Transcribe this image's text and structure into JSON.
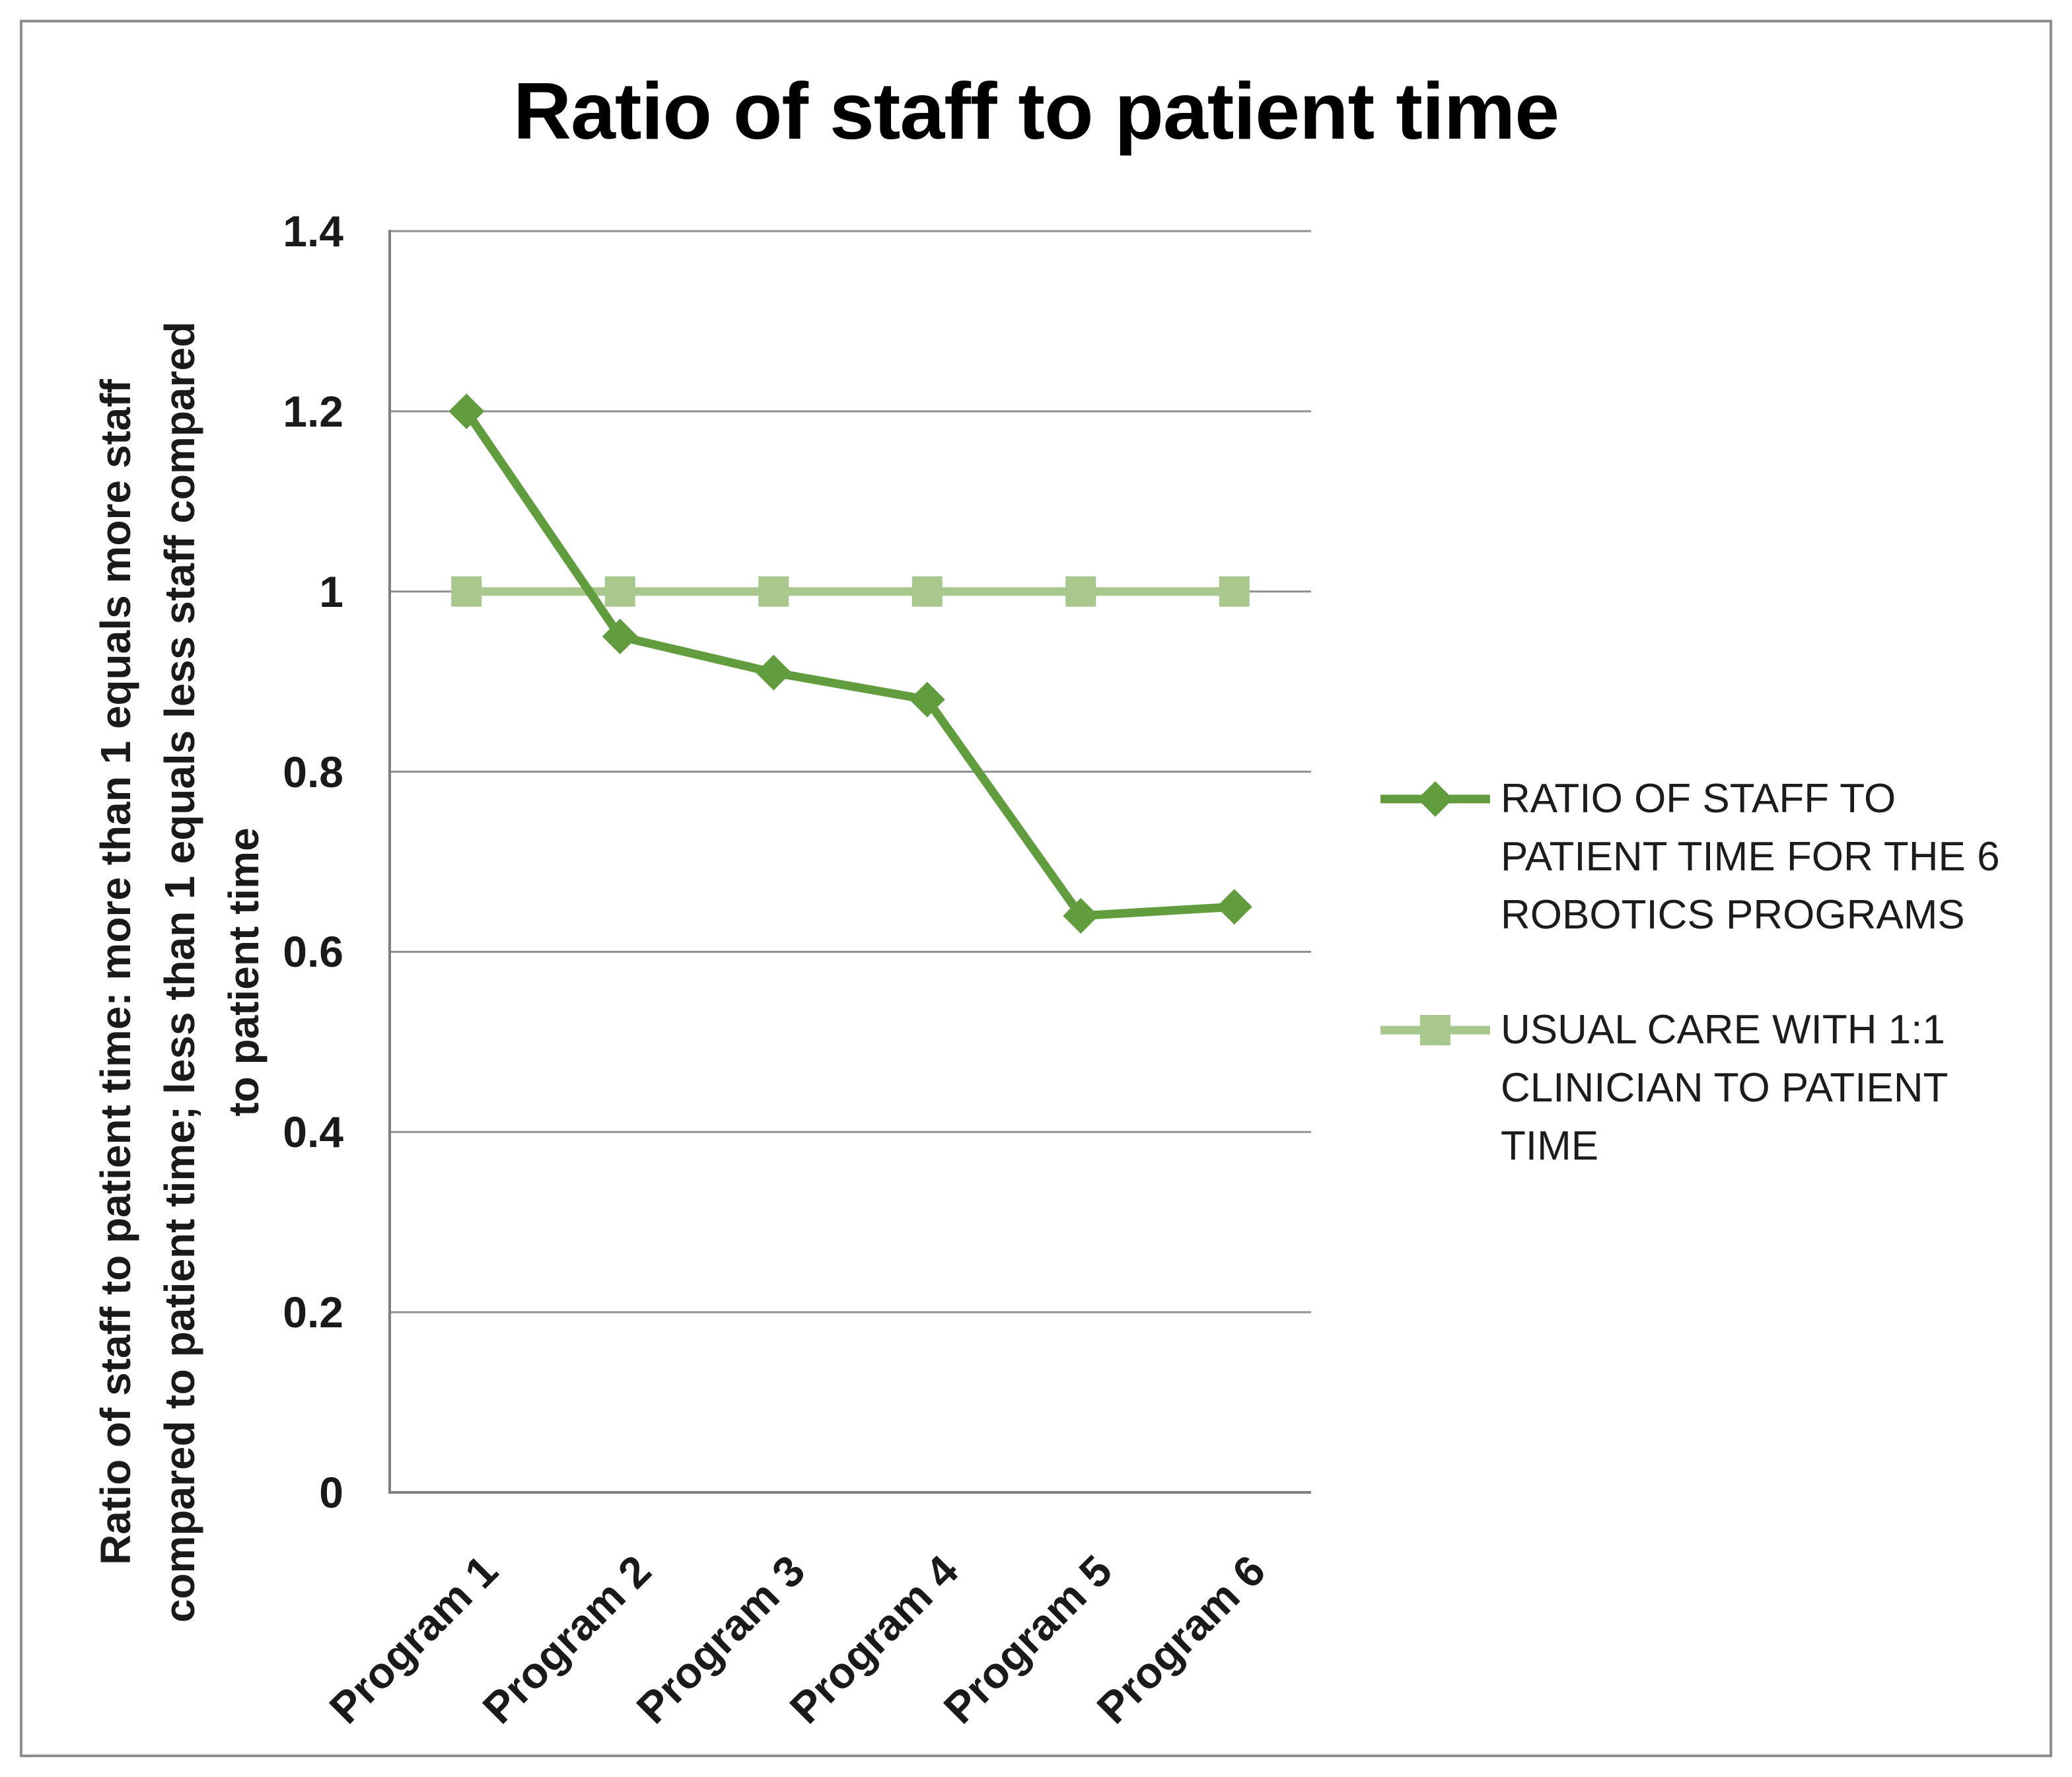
{
  "title": "Ratio of staff to patient time",
  "chart_data": {
    "type": "line",
    "categories": [
      "Program 1",
      "Program 2",
      "Program 3",
      "Program 4",
      "Program 5",
      "Program 6"
    ],
    "series": [
      {
        "name": "RATIO OF STAFF TO PATIENT TIME FOR THE 6 ROBOTICS PROGRAMS",
        "legend_lines": [
          "RATIO OF STAFF TO",
          "PATIENT TIME FOR THE 6",
          "ROBOTICS PROGRAMS"
        ],
        "values": [
          1.2,
          0.95,
          0.91,
          0.88,
          0.64,
          0.65
        ],
        "color": "#619c3e",
        "marker": "diamond"
      },
      {
        "name": "USUAL CARE WITH 1:1 CLINICIAN TO PATIENT TIME",
        "legend_lines": [
          "USUAL CARE WITH 1:1",
          "CLINICIAN TO PATIENT",
          "TIME"
        ],
        "values": [
          1,
          1,
          1,
          1,
          1,
          1
        ],
        "color": "#a8c88d",
        "marker": "square"
      }
    ],
    "title": "Ratio of staff to patient time",
    "xlabel": "",
    "ylabel": "Ratio of staff to patient time: more than 1 equals more staff compared to patient time; less than 1 equals less staff compared to patient time",
    "ylabel_lines": [
      "Ratio of staff to patient time: more than 1 equals more staff",
      "compared to patient time; less than 1 equals less staff compared",
      "to patient time"
    ],
    "ylim": [
      0,
      1.4
    ],
    "ytick_values": [
      1.4,
      1.2,
      1,
      0.8,
      0.6,
      0.4,
      0.2,
      0
    ],
    "ytick_labels": [
      "1.4",
      "1.2",
      "1",
      "0.8",
      "0.6",
      "0.4",
      "0.2",
      "0"
    ],
    "grid": "horizontal",
    "legend_position": "right"
  },
  "colors": {
    "series1": "#619c3e",
    "series2": "#a8c88d",
    "gridline": "#8f8f8f",
    "axis": "#7f7f7f",
    "frame_border": "#8d8d8d",
    "text": "#1a1a1a",
    "background": "#ffffff"
  }
}
